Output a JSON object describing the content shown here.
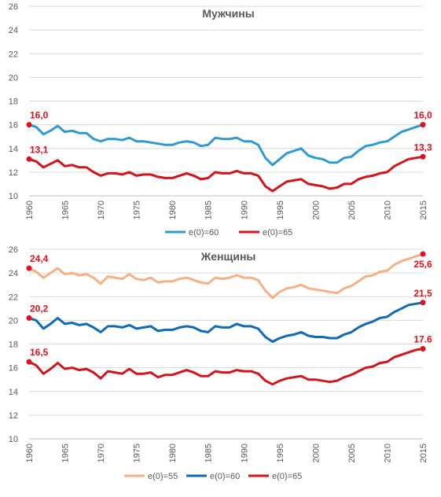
{
  "chart_data": [
    {
      "type": "line",
      "title": "Мужчины",
      "xlabel": "",
      "ylabel": "",
      "ylim": [
        10,
        26
      ],
      "yticks": [
        "10",
        "12",
        "14",
        "16",
        "18",
        "20",
        "22",
        "24",
        "26"
      ],
      "xlim": [
        1960,
        2015
      ],
      "xticks": [
        "1960",
        "1965",
        "1970",
        "1975",
        "1980",
        "1985",
        "1990",
        "1995",
        "2000",
        "2005",
        "2010",
        "2015"
      ],
      "grid": true,
      "legend": "bottom",
      "x": [
        1960,
        1961,
        1962,
        1963,
        1964,
        1965,
        1966,
        1967,
        1968,
        1969,
        1970,
        1971,
        1972,
        1973,
        1974,
        1975,
        1976,
        1977,
        1978,
        1979,
        1980,
        1981,
        1982,
        1983,
        1984,
        1985,
        1986,
        1987,
        1988,
        1989,
        1990,
        1991,
        1992,
        1993,
        1994,
        1995,
        1996,
        1997,
        1998,
        1999,
        2000,
        2001,
        2002,
        2003,
        2004,
        2005,
        2006,
        2007,
        2008,
        2009,
        2010,
        2011,
        2012,
        2013,
        2014,
        2015
      ],
      "series": [
        {
          "name": "e(0)=60",
          "color": "#2e9ad4",
          "values": [
            16.0,
            15.8,
            15.2,
            15.5,
            15.9,
            15.4,
            15.5,
            15.3,
            15.3,
            14.8,
            14.6,
            14.8,
            14.8,
            14.7,
            14.9,
            14.6,
            14.6,
            14.5,
            14.4,
            14.3,
            14.3,
            14.5,
            14.6,
            14.5,
            14.2,
            14.3,
            14.9,
            14.8,
            14.8,
            14.9,
            14.6,
            14.6,
            14.3,
            13.2,
            12.6,
            13.1,
            13.6,
            13.8,
            14.0,
            13.4,
            13.2,
            13.1,
            12.8,
            12.8,
            13.2,
            13.3,
            13.8,
            14.2,
            14.3,
            14.5,
            14.6,
            15.0,
            15.4,
            15.6,
            15.8,
            16.0
          ],
          "labels": [
            {
              "index": 0,
              "text": "16,0",
              "pos": "above-right"
            },
            {
              "index": 55,
              "text": "16,0",
              "pos": "above"
            }
          ]
        },
        {
          "name": "e(0)=65",
          "color": "#d4141b",
          "values": [
            13.1,
            12.9,
            12.4,
            12.7,
            13.0,
            12.5,
            12.6,
            12.4,
            12.4,
            12.0,
            11.7,
            11.9,
            11.9,
            11.8,
            12.0,
            11.7,
            11.8,
            11.8,
            11.6,
            11.5,
            11.5,
            11.7,
            11.9,
            11.7,
            11.4,
            11.5,
            12.0,
            11.9,
            11.9,
            12.1,
            11.9,
            11.9,
            11.7,
            10.8,
            10.4,
            10.8,
            11.2,
            11.3,
            11.4,
            11.0,
            10.9,
            10.8,
            10.6,
            10.7,
            11.0,
            11.0,
            11.4,
            11.6,
            11.7,
            11.9,
            12.0,
            12.5,
            12.8,
            13.1,
            13.2,
            13.3
          ],
          "labels": [
            {
              "index": 0,
              "text": "13,1",
              "pos": "above-right"
            },
            {
              "index": 55,
              "text": "13,3",
              "pos": "above"
            }
          ]
        }
      ]
    },
    {
      "type": "line",
      "title": "Женщины",
      "xlabel": "",
      "ylabel": "",
      "ylim": [
        10,
        26
      ],
      "yticks": [
        "10",
        "12",
        "14",
        "16",
        "18",
        "20",
        "22",
        "24",
        "26"
      ],
      "xlim": [
        1960,
        2015
      ],
      "xticks": [
        "1960",
        "1965",
        "1970",
        "1975",
        "1980",
        "1985",
        "1990",
        "1995",
        "2000",
        "2005",
        "2010",
        "2015"
      ],
      "grid": true,
      "legend": "bottom",
      "x": [
        1960,
        1961,
        1962,
        1963,
        1964,
        1965,
        1966,
        1967,
        1968,
        1969,
        1970,
        1971,
        1972,
        1973,
        1974,
        1975,
        1976,
        1977,
        1978,
        1979,
        1980,
        1981,
        1982,
        1983,
        1984,
        1985,
        1986,
        1987,
        1988,
        1989,
        1990,
        1991,
        1992,
        1993,
        1994,
        1995,
        1996,
        1997,
        1998,
        1999,
        2000,
        2001,
        2002,
        2003,
        2004,
        2005,
        2006,
        2007,
        2008,
        2009,
        2010,
        2011,
        2012,
        2013,
        2014,
        2015
      ],
      "series": [
        {
          "name": "e(0)=55",
          "color": "#f5b183",
          "values": [
            24.4,
            24.1,
            23.6,
            24.0,
            24.4,
            23.9,
            24.0,
            23.8,
            23.9,
            23.6,
            23.1,
            23.7,
            23.6,
            23.5,
            23.9,
            23.5,
            23.4,
            23.6,
            23.2,
            23.3,
            23.3,
            23.5,
            23.6,
            23.4,
            23.2,
            23.1,
            23.6,
            23.5,
            23.6,
            23.8,
            23.6,
            23.6,
            23.4,
            22.5,
            21.9,
            22.4,
            22.7,
            22.8,
            23.0,
            22.7,
            22.6,
            22.5,
            22.4,
            22.3,
            22.7,
            22.9,
            23.3,
            23.7,
            23.8,
            24.1,
            24.2,
            24.7,
            25.0,
            25.2,
            25.4,
            25.6
          ],
          "labels": [
            {
              "index": 0,
              "text": "24,4",
              "pos": "above-right"
            },
            {
              "index": 55,
              "text": "25,6",
              "pos": "below"
            }
          ]
        },
        {
          "name": "e(0)=60",
          "color": "#0f6ab8",
          "values": [
            20.2,
            20.0,
            19.3,
            19.7,
            20.2,
            19.7,
            19.8,
            19.6,
            19.7,
            19.4,
            19.0,
            19.5,
            19.5,
            19.4,
            19.6,
            19.3,
            19.4,
            19.5,
            19.1,
            19.2,
            19.2,
            19.4,
            19.5,
            19.4,
            19.1,
            19.0,
            19.5,
            19.4,
            19.4,
            19.7,
            19.5,
            19.5,
            19.3,
            18.6,
            18.2,
            18.5,
            18.7,
            18.8,
            19.0,
            18.7,
            18.6,
            18.6,
            18.5,
            18.5,
            18.8,
            19.0,
            19.4,
            19.7,
            19.9,
            20.2,
            20.3,
            20.7,
            21.0,
            21.3,
            21.4,
            21.5
          ],
          "labels": [
            {
              "index": 0,
              "text": "20,2",
              "pos": "above-right"
            },
            {
              "index": 55,
              "text": "21,5",
              "pos": "above"
            }
          ]
        },
        {
          "name": "e(0)=65",
          "color": "#d4141b",
          "values": [
            16.5,
            16.2,
            15.5,
            15.9,
            16.4,
            15.9,
            16.0,
            15.8,
            15.9,
            15.6,
            15.1,
            15.7,
            15.6,
            15.5,
            15.9,
            15.5,
            15.5,
            15.6,
            15.2,
            15.4,
            15.4,
            15.6,
            15.8,
            15.6,
            15.3,
            15.3,
            15.7,
            15.6,
            15.6,
            15.8,
            15.7,
            15.7,
            15.5,
            14.9,
            14.6,
            14.9,
            15.1,
            15.2,
            15.3,
            15.0,
            15.0,
            14.9,
            14.8,
            14.9,
            15.2,
            15.4,
            15.7,
            16.0,
            16.1,
            16.4,
            16.5,
            16.9,
            17.1,
            17.3,
            17.5,
            17.6
          ],
          "labels": [
            {
              "index": 0,
              "text": "16,5",
              "pos": "above-right"
            },
            {
              "index": 55,
              "text": "17.6",
              "pos": "above"
            }
          ]
        }
      ]
    }
  ]
}
